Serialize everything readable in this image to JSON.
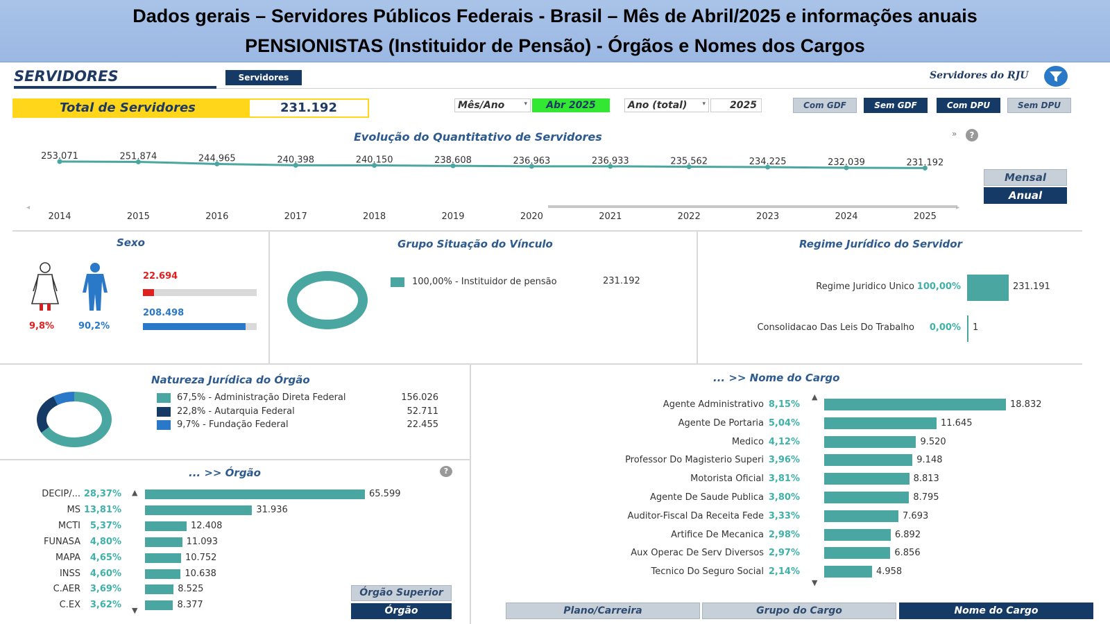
{
  "banner": {
    "line1": "Dados gerais – Servidores Públicos Federais - Brasil – Mês de Abril/2025 e informações anuais",
    "line2": "PENSIONISTAS (Instituidor de Pensão)  - Órgãos e Nomes dos Cargos"
  },
  "header": {
    "title": "SERVIDORES",
    "tab": "Servidores",
    "rju_label": "Servidores do RJU",
    "total_label": "Total de Servidores",
    "total_value": "231.192"
  },
  "filters": {
    "mes_ano_label": "Mês/Ano",
    "mes_ano_value": "Abr 2025",
    "ano_label": "Ano (total)",
    "ano_value": "2025",
    "buttons": [
      "Com GDF",
      "Sem GDF",
      "Com DPU",
      "Sem DPU"
    ]
  },
  "evolucao": {
    "title": "Evolução do Quantitativo de Servidores",
    "toggle_mensal": "Mensal",
    "toggle_anual": "Anual",
    "chart_data": {
      "type": "line",
      "x": [
        "2014",
        "2015",
        "2016",
        "2017",
        "2018",
        "2019",
        "2020",
        "2021",
        "2022",
        "2023",
        "2024",
        "2025"
      ],
      "values": [
        253071,
        251874,
        244965,
        240398,
        240150,
        238608,
        236963,
        236933,
        235562,
        234225,
        232039,
        231192
      ],
      "labels": [
        "253.071",
        "251.874",
        "244.965",
        "240.398",
        "240.150",
        "238.608",
        "236.963",
        "236.933",
        "235.562",
        "234.225",
        "232.039",
        "231.192"
      ]
    }
  },
  "sexo": {
    "title": "Sexo",
    "fem_pct": "9,8%",
    "masc_pct": "90,2%",
    "fem_value": "22.694",
    "masc_value": "208.498",
    "fem_fraction": 0.098,
    "masc_fraction": 0.902
  },
  "vinculo": {
    "title": "Grupo Situação do Vínculo",
    "legend": "100,00% - Instituidor de pensão",
    "value": "231.192"
  },
  "regime": {
    "title": "Regime Jurídico do Servidor",
    "rows": [
      {
        "label": "Regime Juridico Unico",
        "pct": "100,00%",
        "value": "231.191",
        "num": 231191
      },
      {
        "label": "Consolidacao Das Leis Do Trabalho",
        "pct": "0,00%",
        "value": "1",
        "num": 1
      }
    ]
  },
  "natureza": {
    "title": "Natureza Jurídica do Órgão",
    "items": [
      {
        "legend": "67,5% - Administração Direta Federal",
        "value": "156.026",
        "color": "#4aa6a0",
        "fraction": 0.675
      },
      {
        "legend": "22,8% - Autarquia Federal",
        "value": "52.711",
        "color": "#163a66",
        "fraction": 0.228
      },
      {
        "legend": "9,7% - Fundação Federal",
        "value": "22.455",
        "color": "#2a78c8",
        "fraction": 0.097
      }
    ]
  },
  "orgao": {
    "title": "... >> Órgão",
    "btn_superior": "Órgão Superior",
    "btn_orgao": "Órgão",
    "rows": [
      {
        "label": "DECIP/...",
        "pct": "28,37%",
        "value": "65.599",
        "num": 65599
      },
      {
        "label": "MS",
        "pct": "13,81%",
        "value": "31.936",
        "num": 31936
      },
      {
        "label": "MCTI",
        "pct": "5,37%",
        "value": "12.408",
        "num": 12408
      },
      {
        "label": "FUNASA",
        "pct": "4,80%",
        "value": "11.093",
        "num": 11093
      },
      {
        "label": "MAPA",
        "pct": "4,65%",
        "value": "10.752",
        "num": 10752
      },
      {
        "label": "INSS",
        "pct": "4,60%",
        "value": "10.638",
        "num": 10638
      },
      {
        "label": "C.AER",
        "pct": "3,69%",
        "value": "8.525",
        "num": 8525
      },
      {
        "label": "C.EX",
        "pct": "3,62%",
        "value": "8.377",
        "num": 8377
      }
    ]
  },
  "cargo": {
    "title": "... >> Nome do Cargo",
    "tabs": [
      "Plano/Carreira",
      "Grupo do Cargo",
      "Nome do Cargo"
    ],
    "rows": [
      {
        "label": "Agente Administrativo",
        "pct": "8,15%",
        "value": "18.832",
        "num": 18832
      },
      {
        "label": "Agente De Portaria",
        "pct": "5,04%",
        "value": "11.645",
        "num": 11645
      },
      {
        "label": "Medico",
        "pct": "4,12%",
        "value": "9.520",
        "num": 9520
      },
      {
        "label": "Professor Do Magisterio Superi",
        "pct": "3,96%",
        "value": "9.148",
        "num": 9148
      },
      {
        "label": "Motorista Oficial",
        "pct": "3,81%",
        "value": "8.813",
        "num": 8813
      },
      {
        "label": "Agente De Saude Publica",
        "pct": "3,80%",
        "value": "8.795",
        "num": 8795
      },
      {
        "label": "Auditor-Fiscal Da Receita Fede",
        "pct": "3,33%",
        "value": "7.693",
        "num": 7693
      },
      {
        "label": "Artifice De Mecanica",
        "pct": "2,98%",
        "value": "6.892",
        "num": 6892
      },
      {
        "label": "Aux Operac De Serv Diversos",
        "pct": "2,97%",
        "value": "6.856",
        "num": 6856
      },
      {
        "label": "Tecnico Do Seguro Social",
        "pct": "2,14%",
        "value": "4.958",
        "num": 4958
      }
    ]
  },
  "colors": {
    "teal": "#4aa6a0",
    "navy": "#163a66",
    "yellow": "#ffd61a",
    "green": "#33e833",
    "red": "#e02020",
    "blue": "#2a78c8"
  },
  "icons": [
    "filter-icon",
    "help-icon",
    "female-icon",
    "male-icon",
    "scroll-up-icon",
    "scroll-down-icon"
  ]
}
